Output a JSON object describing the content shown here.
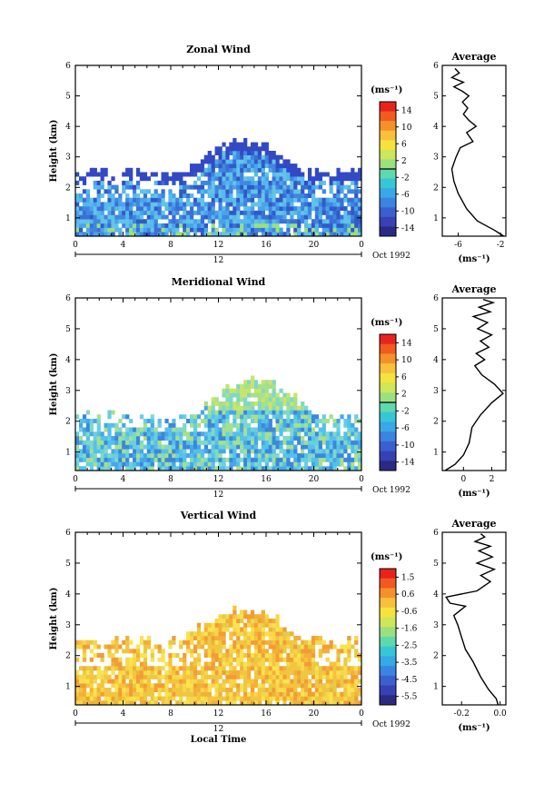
{
  "axis_label_height": "Height (km)",
  "axis_label_time": "Local Time",
  "date_label": "Oct 1992",
  "unit_label": "(ms⁻¹)",
  "average_title": "Average",
  "chart_data": [
    {
      "type": "heatmap",
      "title": "Zonal Wind",
      "ylabel": "Height (km)",
      "x_ticks": [
        "0",
        "4",
        "8",
        "12",
        "16",
        "20",
        "0"
      ],
      "x_range": [
        0,
        24
      ],
      "y_ticks": [
        "1",
        "2",
        "3",
        "4",
        "5",
        "6"
      ],
      "y_range": [
        0.4,
        6
      ],
      "day_label": "12",
      "colorbar": {
        "unit": "(ms⁻¹)",
        "ticks": [
          "14",
          "10",
          "6",
          "2",
          "-2",
          "-6",
          "-10",
          "-14"
        ],
        "range": [
          -16,
          16
        ]
      },
      "profile": {
        "title": "Average",
        "xlabel": "(ms⁻¹)",
        "x_ticks": [
          "-6",
          "-2"
        ],
        "xlim": [
          -7.5,
          -1.5
        ],
        "x": [
          -1.7,
          -2.6,
          -4.2,
          -5.2,
          -6.0,
          -6.4,
          -6.6,
          -6.2,
          -5.8,
          -4.6,
          -5.2,
          -4.3,
          -5.0,
          -5.5,
          -5.1,
          -5.6,
          -5.0,
          -5.6,
          -6.4,
          -5.5,
          -6.6,
          -5.9,
          -6.3
        ],
        "y": [
          0.4,
          0.6,
          0.9,
          1.3,
          1.8,
          2.2,
          2.6,
          3.0,
          3.3,
          3.5,
          3.8,
          4.0,
          4.2,
          4.4,
          4.6,
          4.8,
          5.0,
          5.15,
          5.3,
          5.45,
          5.6,
          5.75,
          5.9
        ]
      }
    },
    {
      "type": "heatmap",
      "title": "Meridional Wind",
      "ylabel": "Height (km)",
      "x_ticks": [
        "0",
        "4",
        "8",
        "12",
        "16",
        "20",
        "0"
      ],
      "x_range": [
        0,
        24
      ],
      "y_ticks": [
        "1",
        "2",
        "3",
        "4",
        "5",
        "6"
      ],
      "y_range": [
        0.4,
        6
      ],
      "day_label": "12",
      "colorbar": {
        "unit": "(ms⁻¹)",
        "ticks": [
          "14",
          "10",
          "6",
          "2",
          "-2",
          "-6",
          "-10",
          "-14"
        ],
        "range": [
          -16,
          16
        ]
      },
      "profile": {
        "title": "Average",
        "xlabel": "(ms⁻¹)",
        "x_ticks": [
          "0",
          "2"
        ],
        "xlim": [
          -1.5,
          3
        ],
        "x": [
          -1.3,
          -0.6,
          0.0,
          0.4,
          0.6,
          1.2,
          2.0,
          2.8,
          2.2,
          1.3,
          0.8,
          1.5,
          0.9,
          1.8,
          1.2,
          2.0,
          1.0,
          1.7,
          0.7,
          1.9,
          1.1,
          2.1,
          1.4
        ],
        "y": [
          0.4,
          0.6,
          0.9,
          1.3,
          1.8,
          2.2,
          2.6,
          2.9,
          3.2,
          3.5,
          3.8,
          4.0,
          4.2,
          4.4,
          4.6,
          4.8,
          5.0,
          5.2,
          5.4,
          5.55,
          5.7,
          5.85,
          5.95
        ]
      }
    },
    {
      "type": "heatmap",
      "title": "Vertical Wind",
      "ylabel": "Height (km)",
      "xlabel": "Local Time",
      "x_ticks": [
        "0",
        "4",
        "8",
        "12",
        "16",
        "20",
        "0"
      ],
      "x_range": [
        0,
        24
      ],
      "y_ticks": [
        "1",
        "2",
        "3",
        "4",
        "5",
        "6"
      ],
      "y_range": [
        0.4,
        6
      ],
      "day_label": "12",
      "colorbar": {
        "unit": "(ms⁻¹)",
        "ticks": [
          "1.5",
          "0.6",
          "-0.6",
          "-1.6",
          "-2.5",
          "-3.5",
          "-4.5",
          "-5.5"
        ],
        "range": [
          -6,
          2
        ]
      },
      "profile": {
        "title": "Average",
        "xlabel": "(ms⁻¹)",
        "x_ticks": [
          "-0.2",
          "0.0"
        ],
        "xlim": [
          -0.3,
          0.03
        ],
        "x": [
          -0.01,
          -0.02,
          -0.06,
          -0.1,
          -0.14,
          -0.18,
          -0.2,
          -0.22,
          -0.24,
          -0.18,
          -0.26,
          -0.28,
          -0.12,
          -0.05,
          -0.1,
          -0.03,
          -0.12,
          -0.04,
          -0.11,
          -0.05,
          -0.13,
          -0.08,
          -0.1
        ],
        "y": [
          0.4,
          0.6,
          0.9,
          1.3,
          1.8,
          2.2,
          2.6,
          3.0,
          3.3,
          3.6,
          3.7,
          3.9,
          4.1,
          4.4,
          4.6,
          4.8,
          5.0,
          5.2,
          5.4,
          5.55,
          5.7,
          5.85,
          5.95
        ]
      }
    }
  ]
}
